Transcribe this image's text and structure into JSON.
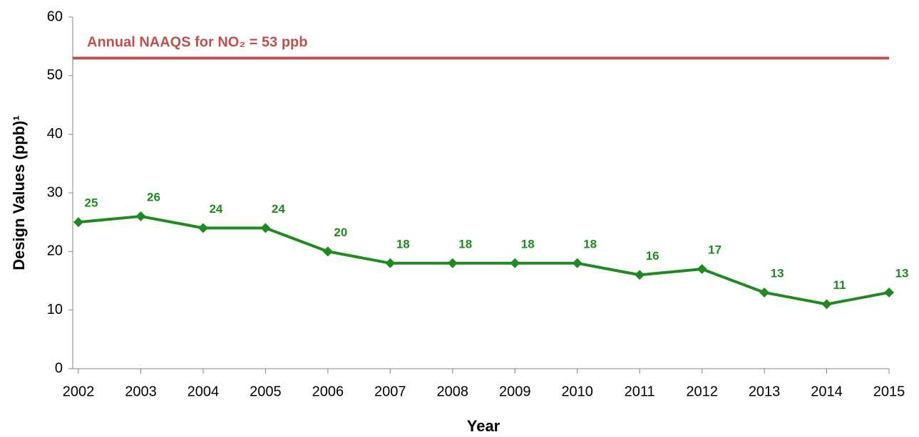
{
  "chart_data": {
    "type": "line",
    "x": [
      2002,
      2003,
      2004,
      2005,
      2006,
      2007,
      2008,
      2009,
      2010,
      2011,
      2012,
      2013,
      2014,
      2015
    ],
    "series": [
      {
        "color": "#1f8a1f",
        "values": [
          25,
          26,
          24,
          24,
          20,
          18,
          18,
          18,
          18,
          16,
          17,
          13,
          11,
          13
        ]
      }
    ],
    "xlim": [
      2002,
      2015
    ],
    "xticks": [
      2002,
      2003,
      2004,
      2005,
      2006,
      2007,
      2008,
      2009,
      2010,
      2011,
      2012,
      2013,
      2014,
      2015
    ],
    "ylim": [
      0,
      60
    ],
    "yticks": [
      0,
      10,
      20,
      30,
      40,
      50,
      60
    ],
    "xlabel": "Year",
    "ylabel": "Design Values (ppb)¹",
    "reference_line": {
      "value": 53,
      "label": "Annual NAAQS for NO₂ = 53 ppb",
      "color": "#c0504d"
    },
    "grid": false
  }
}
